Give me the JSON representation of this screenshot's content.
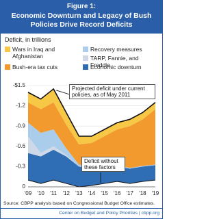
{
  "chart_data": {
    "type": "stacked-area",
    "figure_label": "Figure 1:",
    "title": "Economic Downturn and Legacy of Bush Policies Drive Record Deficits",
    "y_axis_label": "Deficit, in trillions",
    "categories": [
      "'09",
      "'10",
      "'11",
      "'12",
      "'13",
      "'14",
      "'15",
      "'16",
      "'17",
      "'18",
      "'19"
    ],
    "series": [
      {
        "name": "Deficit without these factors",
        "color": "#ffffff",
        "values": [
          -0.1,
          -0.05,
          -0.1,
          -0.05,
          0,
          -0.02,
          -0.05,
          -0.08,
          -0.05,
          -0.08,
          -0.1
        ]
      },
      {
        "name": "Economic downturn",
        "color": "#2f6db5",
        "values": [
          -0.4,
          -0.4,
          -0.45,
          -0.4,
          -0.3,
          -0.25,
          -0.22,
          -0.22,
          -0.22,
          -0.22,
          -0.22
        ]
      },
      {
        "name": "TARP, Fannie, and Freddie",
        "color": "#cfd8e6",
        "values": [
          -0.25,
          -0.05,
          -0.05,
          -0.02,
          0,
          0,
          0,
          0,
          0,
          0,
          0
        ]
      },
      {
        "name": "Recovery measures",
        "color": "#a9cdeb",
        "values": [
          -0.2,
          -0.3,
          -0.25,
          -0.1,
          -0.03,
          -0.02,
          -0.02,
          -0.02,
          -0.01,
          -0.01,
          -0.01
        ]
      },
      {
        "name": "Bush-era tax cuts",
        "color": "#f29a2e",
        "values": [
          -0.3,
          -0.35,
          -0.4,
          -0.35,
          -0.3,
          -0.36,
          -0.46,
          -0.53,
          -0.62,
          -0.69,
          -0.82
        ]
      },
      {
        "name": "Wars in Iraq and Afghanistan",
        "color": "#f6c845",
        "values": [
          -0.15,
          -0.15,
          -0.2,
          -0.18,
          -0.12,
          -0.1,
          -0.1,
          -0.1,
          -0.1,
          -0.1,
          -0.1
        ]
      }
    ],
    "ylim": [
      0,
      -1.5
    ],
    "yticks": [
      {
        "value": -1.5,
        "label": "-$1.5"
      },
      -1.2,
      -0.9,
      -0.6,
      -0.3,
      0
    ],
    "grid": true,
    "annotations": [
      "Projected deficit under current policies, as of May 2011"
    ],
    "source": "Source: CBPP analysis based on Congressional Budget Office estimates.",
    "footer": "Center on Budget and Policy Priorities | cbpp.org"
  }
}
